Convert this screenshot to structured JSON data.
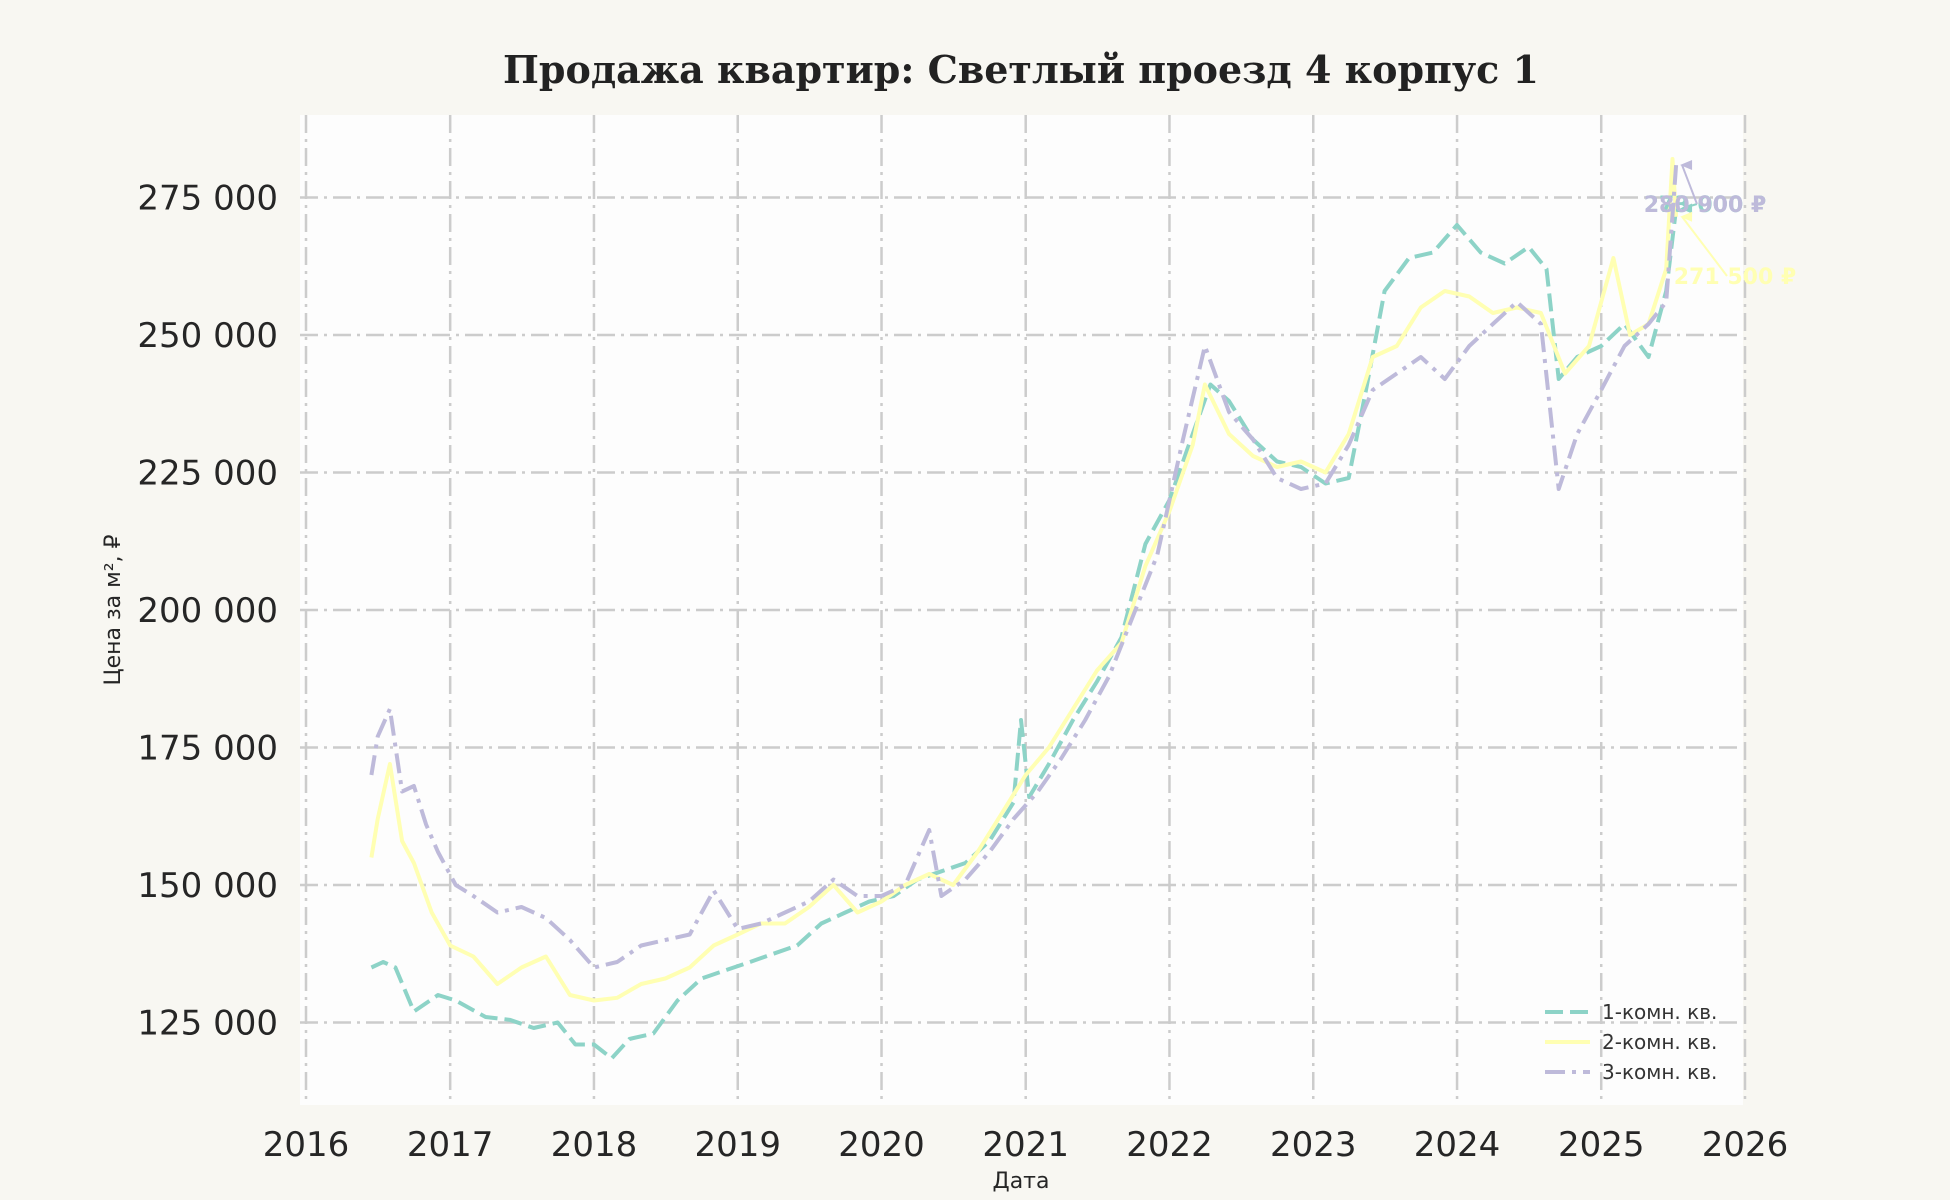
{
  "chart_data": {
    "type": "line",
    "title": "Продажа квартир: Светлый проезд 4 корпус 1",
    "xlabel": "Дата",
    "ylabel": "Цена за м², ₽",
    "xlim": [
      "2016-01-01",
      "2026-01-01"
    ],
    "ylim": [
      110000,
      290000
    ],
    "x_ticks": [
      "2016",
      "2017",
      "2018",
      "2019",
      "2020",
      "2021",
      "2022",
      "2023",
      "2024",
      "2025",
      "2026"
    ],
    "y_ticks": [
      {
        "value": 125000,
        "label": "125 000"
      },
      {
        "value": 150000,
        "label": "150 000"
      },
      {
        "value": 175000,
        "label": "175 000"
      },
      {
        "value": 200000,
        "label": "200 000"
      },
      {
        "value": 225000,
        "label": "225 000"
      },
      {
        "value": 250000,
        "label": "250 000"
      },
      {
        "value": 275000,
        "label": "275 000"
      }
    ],
    "grid": true,
    "legend_position": "lower-right",
    "series": [
      {
        "name": "1-комн. кв.",
        "color": "#8dd3c7",
        "dash": "dashed",
        "end_label": "273 000 ₽",
        "points": [
          [
            "2016-06-15",
            135000
          ],
          [
            "2016-07-15",
            136000
          ],
          [
            "2016-08-15",
            135000
          ],
          [
            "2016-10-01",
            127000
          ],
          [
            "2016-12-01",
            130000
          ],
          [
            "2017-01-15",
            129000
          ],
          [
            "2017-04-01",
            126000
          ],
          [
            "2017-06-01",
            125500
          ],
          [
            "2017-08-01",
            124000
          ],
          [
            "2017-10-01",
            125000
          ],
          [
            "2017-11-15",
            121000
          ],
          [
            "2018-01-01",
            121000
          ],
          [
            "2018-02-15",
            118500
          ],
          [
            "2018-04-01",
            122000
          ],
          [
            "2018-06-01",
            123000
          ],
          [
            "2018-08-01",
            129000
          ],
          [
            "2018-10-01",
            133000
          ],
          [
            "2018-12-01",
            134500
          ],
          [
            "2019-02-01",
            136000
          ],
          [
            "2019-04-01",
            137500
          ],
          [
            "2019-06-01",
            139000
          ],
          [
            "2019-08-01",
            143000
          ],
          [
            "2019-10-01",
            145000
          ],
          [
            "2019-12-01",
            147000
          ],
          [
            "2020-02-01",
            148000
          ],
          [
            "2020-04-01",
            151000
          ],
          [
            "2020-06-01",
            152500
          ],
          [
            "2020-08-01",
            154000
          ],
          [
            "2020-10-01",
            158000
          ],
          [
            "2020-12-01",
            165000
          ],
          [
            "2020-12-20",
            180000
          ],
          [
            "2021-01-10",
            166000
          ],
          [
            "2021-03-01",
            172000
          ],
          [
            "2021-05-01",
            180000
          ],
          [
            "2021-07-01",
            187000
          ],
          [
            "2021-09-01",
            195000
          ],
          [
            "2021-11-01",
            212000
          ],
          [
            "2022-01-01",
            220000
          ],
          [
            "2022-03-01",
            232000
          ],
          [
            "2022-04-15",
            241000
          ],
          [
            "2022-06-01",
            238000
          ],
          [
            "2022-08-01",
            231000
          ],
          [
            "2022-10-01",
            227000
          ],
          [
            "2022-12-01",
            226000
          ],
          [
            "2023-02-01",
            223000
          ],
          [
            "2023-04-01",
            224000
          ],
          [
            "2023-05-15",
            240000
          ],
          [
            "2023-07-01",
            258000
          ],
          [
            "2023-09-01",
            264000
          ],
          [
            "2023-11-01",
            265000
          ],
          [
            "2024-01-01",
            270000
          ],
          [
            "2024-03-01",
            265000
          ],
          [
            "2024-05-01",
            263000
          ],
          [
            "2024-07-01",
            266000
          ],
          [
            "2024-08-15",
            262000
          ],
          [
            "2024-09-15",
            242000
          ],
          [
            "2024-11-01",
            246000
          ],
          [
            "2025-01-01",
            248000
          ],
          [
            "2025-03-01",
            252000
          ],
          [
            "2025-05-01",
            246000
          ],
          [
            "2025-06-15",
            258000
          ],
          [
            "2025-07-10",
            273000
          ]
        ]
      },
      {
        "name": "2-комн. кв.",
        "color": "#ffffb3",
        "dash": "solid",
        "end_label": "271 500 ₽",
        "points": [
          [
            "2016-06-15",
            155000
          ],
          [
            "2016-07-01",
            162000
          ],
          [
            "2016-08-01",
            172000
          ],
          [
            "2016-09-01",
            158000
          ],
          [
            "2016-10-01",
            154000
          ],
          [
            "2016-11-15",
            145000
          ],
          [
            "2017-01-01",
            139000
          ],
          [
            "2017-03-01",
            137000
          ],
          [
            "2017-05-01",
            132000
          ],
          [
            "2017-07-01",
            135000
          ],
          [
            "2017-09-01",
            137000
          ],
          [
            "2017-11-01",
            130000
          ],
          [
            "2018-01-01",
            129000
          ],
          [
            "2018-03-01",
            129500
          ],
          [
            "2018-05-01",
            132000
          ],
          [
            "2018-07-01",
            133000
          ],
          [
            "2018-09-01",
            135000
          ],
          [
            "2018-11-01",
            139000
          ],
          [
            "2019-01-01",
            141000
          ],
          [
            "2019-03-01",
            143000
          ],
          [
            "2019-05-01",
            143000
          ],
          [
            "2019-07-01",
            146000
          ],
          [
            "2019-09-01",
            150000
          ],
          [
            "2019-11-01",
            145000
          ],
          [
            "2020-01-01",
            147000
          ],
          [
            "2020-03-01",
            150000
          ],
          [
            "2020-05-01",
            152000
          ],
          [
            "2020-07-01",
            150000
          ],
          [
            "2020-09-01",
            156000
          ],
          [
            "2020-11-01",
            163000
          ],
          [
            "2021-01-01",
            170000
          ],
          [
            "2021-03-01",
            175000
          ],
          [
            "2021-05-01",
            182000
          ],
          [
            "2021-07-01",
            189000
          ],
          [
            "2021-09-01",
            194000
          ],
          [
            "2021-11-01",
            208000
          ],
          [
            "2022-01-01",
            218000
          ],
          [
            "2022-03-01",
            230000
          ],
          [
            "2022-04-01",
            241000
          ],
          [
            "2022-06-01",
            232000
          ],
          [
            "2022-08-01",
            228000
          ],
          [
            "2022-10-01",
            226000
          ],
          [
            "2022-12-01",
            227000
          ],
          [
            "2023-02-01",
            225000
          ],
          [
            "2023-04-01",
            232000
          ],
          [
            "2023-06-01",
            246000
          ],
          [
            "2023-08-01",
            248000
          ],
          [
            "2023-10-01",
            255000
          ],
          [
            "2023-12-01",
            258000
          ],
          [
            "2024-02-01",
            257000
          ],
          [
            "2024-04-01",
            254000
          ],
          [
            "2024-06-01",
            255000
          ],
          [
            "2024-08-01",
            254000
          ],
          [
            "2024-10-01",
            243000
          ],
          [
            "2024-12-01",
            248000
          ],
          [
            "2025-02-01",
            264000
          ],
          [
            "2025-03-15",
            250000
          ],
          [
            "2025-05-01",
            252000
          ],
          [
            "2025-06-15",
            262000
          ],
          [
            "2025-07-01",
            282000
          ],
          [
            "2025-07-10",
            271500
          ]
        ]
      },
      {
        "name": "3-комн. кв.",
        "color": "#bebada",
        "dash": "dashdot",
        "end_label": "280 900 ₽",
        "points": [
          [
            "2016-06-15",
            170000
          ],
          [
            "2016-07-01",
            177000
          ],
          [
            "2016-08-01",
            182000
          ],
          [
            "2016-09-01",
            167000
          ],
          [
            "2016-10-01",
            168000
          ],
          [
            "2016-11-01",
            161000
          ],
          [
            "2016-12-01",
            156000
          ],
          [
            "2017-01-15",
            150000
          ],
          [
            "2017-03-01",
            148000
          ],
          [
            "2017-05-01",
            145000
          ],
          [
            "2017-07-01",
            146000
          ],
          [
            "2017-09-01",
            144000
          ],
          [
            "2017-11-01",
            140000
          ],
          [
            "2018-01-01",
            135000
          ],
          [
            "2018-03-01",
            136000
          ],
          [
            "2018-05-01",
            139000
          ],
          [
            "2018-07-01",
            140000
          ],
          [
            "2018-09-01",
            141000
          ],
          [
            "2018-11-01",
            149000
          ],
          [
            "2019-01-01",
            142000
          ],
          [
            "2019-03-01",
            143000
          ],
          [
            "2019-05-01",
            145000
          ],
          [
            "2019-07-01",
            147000
          ],
          [
            "2019-09-01",
            151000
          ],
          [
            "2019-11-01",
            148000
          ],
          [
            "2020-01-01",
            148000
          ],
          [
            "2020-03-01",
            150000
          ],
          [
            "2020-05-01",
            160000
          ],
          [
            "2020-06-01",
            148000
          ],
          [
            "2020-08-01",
            151000
          ],
          [
            "2020-10-01",
            156000
          ],
          [
            "2020-12-01",
            162000
          ],
          [
            "2021-02-01",
            167000
          ],
          [
            "2021-04-01",
            173000
          ],
          [
            "2021-06-01",
            180000
          ],
          [
            "2021-08-01",
            188000
          ],
          [
            "2021-10-01",
            199000
          ],
          [
            "2021-12-01",
            210000
          ],
          [
            "2022-02-01",
            230000
          ],
          [
            "2022-04-01",
            248000
          ],
          [
            "2022-06-01",
            236000
          ],
          [
            "2022-08-01",
            231000
          ],
          [
            "2022-10-01",
            224000
          ],
          [
            "2022-12-01",
            222000
          ],
          [
            "2023-02-01",
            223000
          ],
          [
            "2023-04-01",
            230000
          ],
          [
            "2023-06-01",
            240000
          ],
          [
            "2023-08-01",
            243000
          ],
          [
            "2023-10-01",
            246000
          ],
          [
            "2023-12-01",
            242000
          ],
          [
            "2024-02-01",
            248000
          ],
          [
            "2024-04-01",
            252000
          ],
          [
            "2024-06-01",
            256000
          ],
          [
            "2024-08-01",
            252000
          ],
          [
            "2024-09-15",
            222000
          ],
          [
            "2024-11-01",
            232000
          ],
          [
            "2025-01-01",
            240000
          ],
          [
            "2025-03-01",
            248000
          ],
          [
            "2025-05-01",
            252000
          ],
          [
            "2025-06-15",
            256000
          ],
          [
            "2025-07-10",
            280900
          ]
        ]
      }
    ]
  }
}
